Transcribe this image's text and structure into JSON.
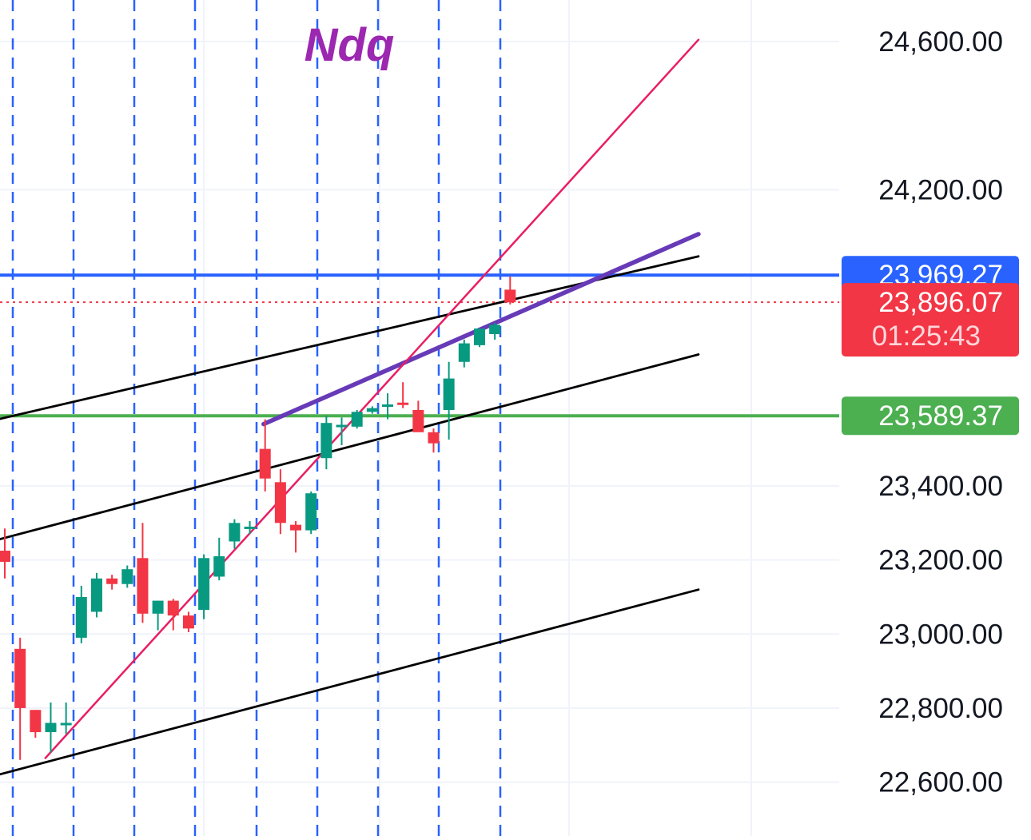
{
  "chart_data": {
    "type": "candlestick",
    "title": "Ndq",
    "ylim": [
      22560,
      24660
    ],
    "y_ticks": [
      "24,600.00",
      "24,200.00",
      "23,400.00",
      "23,200.00",
      "23,000.00",
      "22,800.00",
      "22,600.00"
    ],
    "y_tick_values": [
      24600,
      24200,
      23400,
      23200,
      23000,
      22800,
      22600
    ],
    "grid": true,
    "colors": {
      "up": "#089981",
      "down": "#f23645",
      "blue_level": "#2962ff",
      "green_level": "#4caf50",
      "last_price": "#f23645",
      "purple_line": "#673ab7",
      "pink_line": "#e91e63",
      "channel_lines": "#000000",
      "session_separators": "#2962ff",
      "title": "#9c27b0"
    },
    "candles": [
      {
        "o": 23225,
        "h": 23285,
        "l": 23150,
        "c": 23195
      },
      {
        "o": 22960,
        "h": 22990,
        "l": 22660,
        "c": 22800
      },
      {
        "o": 22795,
        "h": 22795,
        "l": 22720,
        "c": 22735
      },
      {
        "o": 22735,
        "h": 22815,
        "l": 22680,
        "c": 22760
      },
      {
        "o": 22760,
        "h": 22815,
        "l": 22730,
        "c": 22760
      },
      {
        "o": 22990,
        "h": 23130,
        "l": 22975,
        "c": 23100
      },
      {
        "o": 23060,
        "h": 23165,
        "l": 23045,
        "c": 23150
      },
      {
        "o": 23150,
        "h": 23160,
        "l": 23120,
        "c": 23135
      },
      {
        "o": 23135,
        "h": 23185,
        "l": 23125,
        "c": 23175
      },
      {
        "o": 23205,
        "h": 23300,
        "l": 23030,
        "c": 23055
      },
      {
        "o": 23055,
        "h": 23090,
        "l": 23010,
        "c": 23090
      },
      {
        "o": 23090,
        "h": 23095,
        "l": 23010,
        "c": 23050
      },
      {
        "o": 23050,
        "h": 23060,
        "l": 23005,
        "c": 23015
      },
      {
        "o": 23065,
        "h": 23215,
        "l": 23040,
        "c": 23205
      },
      {
        "o": 23155,
        "h": 23260,
        "l": 23145,
        "c": 23210
      },
      {
        "o": 23250,
        "h": 23310,
        "l": 23230,
        "c": 23300
      },
      {
        "o": 23290,
        "h": 23305,
        "l": 23270,
        "c": 23290
      },
      {
        "o": 23500,
        "h": 23580,
        "l": 23385,
        "c": 23420
      },
      {
        "o": 23410,
        "h": 23445,
        "l": 23270,
        "c": 23300
      },
      {
        "o": 23295,
        "h": 23305,
        "l": 23220,
        "c": 23280
      },
      {
        "o": 23280,
        "h": 23385,
        "l": 23270,
        "c": 23380
      },
      {
        "o": 23475,
        "h": 23590,
        "l": 23445,
        "c": 23570
      },
      {
        "o": 23565,
        "h": 23585,
        "l": 23510,
        "c": 23565
      },
      {
        "o": 23560,
        "h": 23605,
        "l": 23555,
        "c": 23600
      },
      {
        "o": 23600,
        "h": 23615,
        "l": 23595,
        "c": 23610
      },
      {
        "o": 23620,
        "h": 23650,
        "l": 23580,
        "c": 23620
      },
      {
        "o": 23625,
        "h": 23680,
        "l": 23610,
        "c": 23620
      },
      {
        "o": 23605,
        "h": 23630,
        "l": 23550,
        "c": 23545
      },
      {
        "o": 23545,
        "h": 23555,
        "l": 23490,
        "c": 23515
      },
      {
        "o": 23605,
        "h": 23735,
        "l": 23525,
        "c": 23690
      },
      {
        "o": 23735,
        "h": 23795,
        "l": 23720,
        "c": 23785
      },
      {
        "o": 23780,
        "h": 23825,
        "l": 23775,
        "c": 23825
      },
      {
        "o": 23810,
        "h": 23840,
        "l": 23795,
        "c": 23835
      },
      {
        "o": 23930,
        "h": 23965,
        "l": 23890,
        "c": 23896
      }
    ],
    "levels": [
      {
        "label": "23,969.27",
        "value": 23969.27,
        "color": "#2962ff"
      },
      {
        "label": "23,589.37",
        "value": 23589.37,
        "color": "#4caf50"
      }
    ],
    "last_price": {
      "label": "23,896.07",
      "value": 23896.07,
      "countdown": "01:25:43"
    },
    "trendlines": [
      {
        "name": "upper-channel-line",
        "color": "#000000",
        "points": [
          [
            -0.42,
            23580
          ],
          [
            45.3,
            24020
          ]
        ]
      },
      {
        "name": "middle-channel-line",
        "color": "#000000",
        "points": [
          [
            -0.42,
            23255
          ],
          [
            45.3,
            23755
          ]
        ]
      },
      {
        "name": "lower-channel-line",
        "color": "#000000",
        "points": [
          [
            -0.42,
            22620
          ],
          [
            45.3,
            23120
          ]
        ]
      },
      {
        "name": "purple-trendline",
        "color": "#673ab7",
        "points": [
          [
            16.9,
            23567
          ],
          [
            45.3,
            24080
          ]
        ]
      },
      {
        "name": "pink-trendline",
        "color": "#e91e63",
        "points": [
          [
            2.65,
            22665
          ],
          [
            45.3,
            24605
          ]
        ]
      }
    ]
  }
}
